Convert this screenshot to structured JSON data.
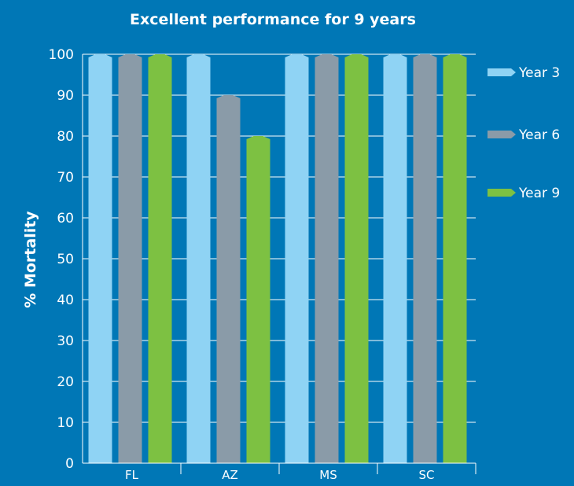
{
  "chart_data": {
    "type": "bar",
    "title": "Excellent performance for 9 years",
    "xlabel": "",
    "ylabel": "% Mortality",
    "ylim": [
      0,
      100
    ],
    "yticks": [
      "0",
      "10",
      "20",
      "30",
      "40",
      "50",
      "60",
      "70",
      "80",
      "90",
      "100"
    ],
    "grid": true,
    "legend_position": "right",
    "categories": [
      "FL",
      "AZ",
      "MS",
      "SC"
    ],
    "series": [
      {
        "name": "Year 3",
        "color": "#8fd3f4",
        "values": [
          100,
          100,
          100,
          100
        ]
      },
      {
        "name": "Year 6",
        "color": "#8a9ba8",
        "values": [
          100,
          90,
          100,
          100
        ]
      },
      {
        "name": "Year 9",
        "color": "#7dc142",
        "values": [
          100,
          80,
          100,
          100
        ]
      }
    ]
  }
}
